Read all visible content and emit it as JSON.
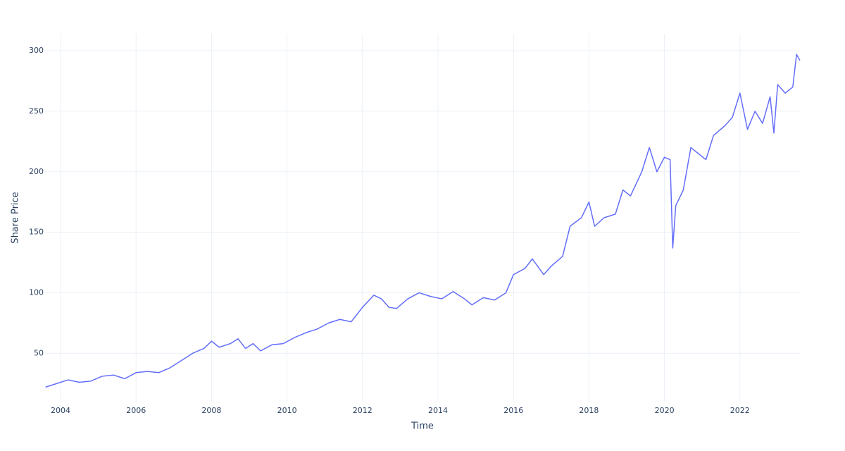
{
  "chart_data": {
    "type": "line",
    "x_label": "Time",
    "y_label": "Share Price",
    "x": [
      2003.6,
      2003.9,
      2004.2,
      2004.5,
      2004.8,
      2005.1,
      2005.4,
      2005.7,
      2006.0,
      2006.3,
      2006.6,
      2006.9,
      2007.2,
      2007.5,
      2007.8,
      2008.0,
      2008.2,
      2008.5,
      2008.7,
      2008.9,
      2009.1,
      2009.3,
      2009.6,
      2009.9,
      2010.2,
      2010.5,
      2010.8,
      2011.1,
      2011.4,
      2011.7,
      2012.0,
      2012.3,
      2012.5,
      2012.7,
      2012.9,
      2013.2,
      2013.5,
      2013.8,
      2014.1,
      2014.4,
      2014.7,
      2014.9,
      2015.2,
      2015.5,
      2015.8,
      2016.0,
      2016.3,
      2016.5,
      2016.8,
      2017.0,
      2017.3,
      2017.5,
      2017.8,
      2018.0,
      2018.15,
      2018.4,
      2018.7,
      2018.9,
      2019.1,
      2019.4,
      2019.6,
      2019.8,
      2020.0,
      2020.15,
      2020.22,
      2020.3,
      2020.5,
      2020.7,
      2020.9,
      2021.1,
      2021.3,
      2021.6,
      2021.8,
      2022.0,
      2022.2,
      2022.4,
      2022.6,
      2022.8,
      2022.9,
      2023.0,
      2023.2,
      2023.4,
      2023.5,
      2023.59
    ],
    "values": [
      22,
      25,
      28,
      26,
      27,
      31,
      32,
      29,
      34,
      35,
      34,
      38,
      44,
      50,
      54,
      60,
      55,
      58,
      62,
      54,
      58,
      52,
      57,
      58,
      63,
      67,
      70,
      75,
      78,
      76,
      88,
      98,
      95,
      88,
      87,
      95,
      100,
      97,
      95,
      101,
      95,
      90,
      96,
      94,
      100,
      115,
      120,
      128,
      115,
      122,
      130,
      155,
      162,
      175,
      155,
      162,
      165,
      185,
      180,
      200,
      220,
      200,
      212,
      210,
      137,
      172,
      185,
      220,
      215,
      210,
      230,
      238,
      245,
      265,
      235,
      250,
      240,
      262,
      232,
      272,
      265,
      270,
      297,
      292
    ],
    "color": "#636efa",
    "xlim": [
      2003.57,
      2023.59
    ],
    "ylim": [
      10,
      314
    ],
    "xticks": [
      2004,
      2006,
      2008,
      2010,
      2012,
      2014,
      2016,
      2018,
      2020,
      2022
    ],
    "yticks": [
      50,
      100,
      150,
      200,
      250,
      300
    ],
    "grid": true
  }
}
